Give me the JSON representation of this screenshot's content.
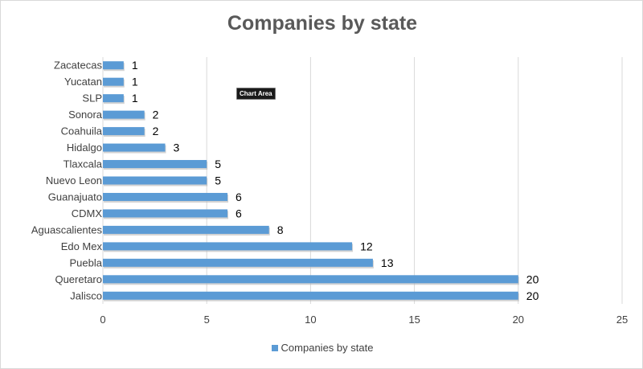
{
  "chart_data": {
    "type": "bar",
    "orientation": "horizontal",
    "title": "Companies by state",
    "categories": [
      "Zacatecas",
      "Yucatan",
      "SLP",
      "Sonora",
      "Coahuila",
      "Hidalgo",
      "Tlaxcala",
      "Nuevo Leon",
      "Guanajuato",
      "CDMX",
      "Aguascalientes",
      "Edo Mex",
      "Puebla",
      "Queretaro",
      "Jalisco"
    ],
    "series": [
      {
        "name": "Companies by state",
        "values": [
          1,
          1,
          1,
          2,
          2,
          3,
          5,
          5,
          6,
          6,
          8,
          12,
          13,
          20,
          20
        ]
      }
    ],
    "x_ticks": [
      0,
      5,
      10,
      15,
      20,
      25
    ],
    "xlim": [
      0,
      25
    ],
    "grid": true,
    "legend_position": "bottom",
    "bar_color": "#5b9bd5"
  },
  "tooltip": {
    "label": "Chart Area"
  }
}
